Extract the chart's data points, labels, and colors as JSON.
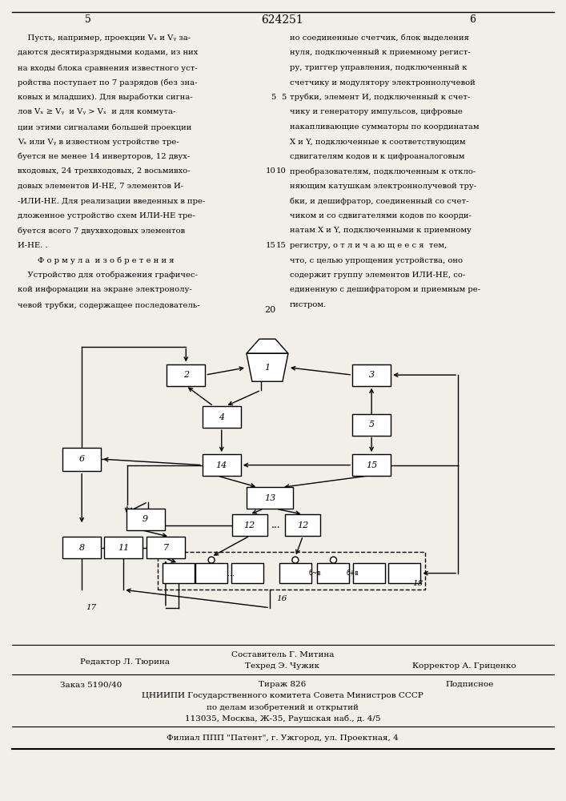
{
  "patent_number": "624251",
  "page_left": "5",
  "page_right": "6",
  "bg_color": "#f2efe9",
  "left_texts": [
    "    Пусть, например, проекции Vₓ и Vᵧ за-",
    "даются десятиразрядными кодами, из них",
    "на входы блока сравнения известного уст-",
    "ройства поступает по 7 разрядов (без зна-",
    "ковых и младших). Для выработки сигна-",
    "лов Vₓ ≥ Vᵧ  и Vᵧ > Vₓ  и для коммута-",
    "ции этими сигналами большей проекции",
    "Vₓ или Vᵧ в известном устройстве тре-",
    "буется не менее 14 инверторов, 12 двух-",
    "входовых, 24 трехвходовых, 2 восьмивхо-",
    "довых элементов И-НЕ, 7 элементов И-",
    "-ИЛИ-НЕ. Для реализации введенных в пре-",
    "дложенное устройство схем ИЛИ-НЕ тре-",
    "буется всего 7 двухвходовых элементов",
    "И-НЕ. .",
    "        Ф о р м у л а  и з о б р е т е н и я",
    "    Устройство для отображения графичес-",
    "кой информации на экране электронолу-",
    "чевой трубки, содержащее последователь-"
  ],
  "right_texts": [
    "но соединенные счетчик, блок выделения",
    "нуля, подключенный к приемному регист-",
    "ру, триггер управления, подключенный к",
    "счетчику и модулятору электроннолучевой",
    "трубки, элемент И, подключенный к счет-",
    "чику и генератору импульсов, цифровые",
    "накапливающие сумматоры по координатам",
    "X и Y, подключенные к соответствующим",
    "сдвигателям кодов и к цифроаналоговым",
    "преобразователям, подключенным к откло-",
    "няющим катушкам электроннолучевой тру-",
    "бки, и дешифратор, соединенный со счет-",
    "чиком и со сдвигателями кодов по коорди-",
    "натам X и Y, подключенными к приемному",
    "регистру, о т л и ч а ю щ е е с я  тем,",
    "что, с целью упрощения устройства, оно",
    "содержит группу элементов ИЛИ-НЕ, со-",
    "единенную с дешифратором и приемным ре-",
    "гистром."
  ]
}
